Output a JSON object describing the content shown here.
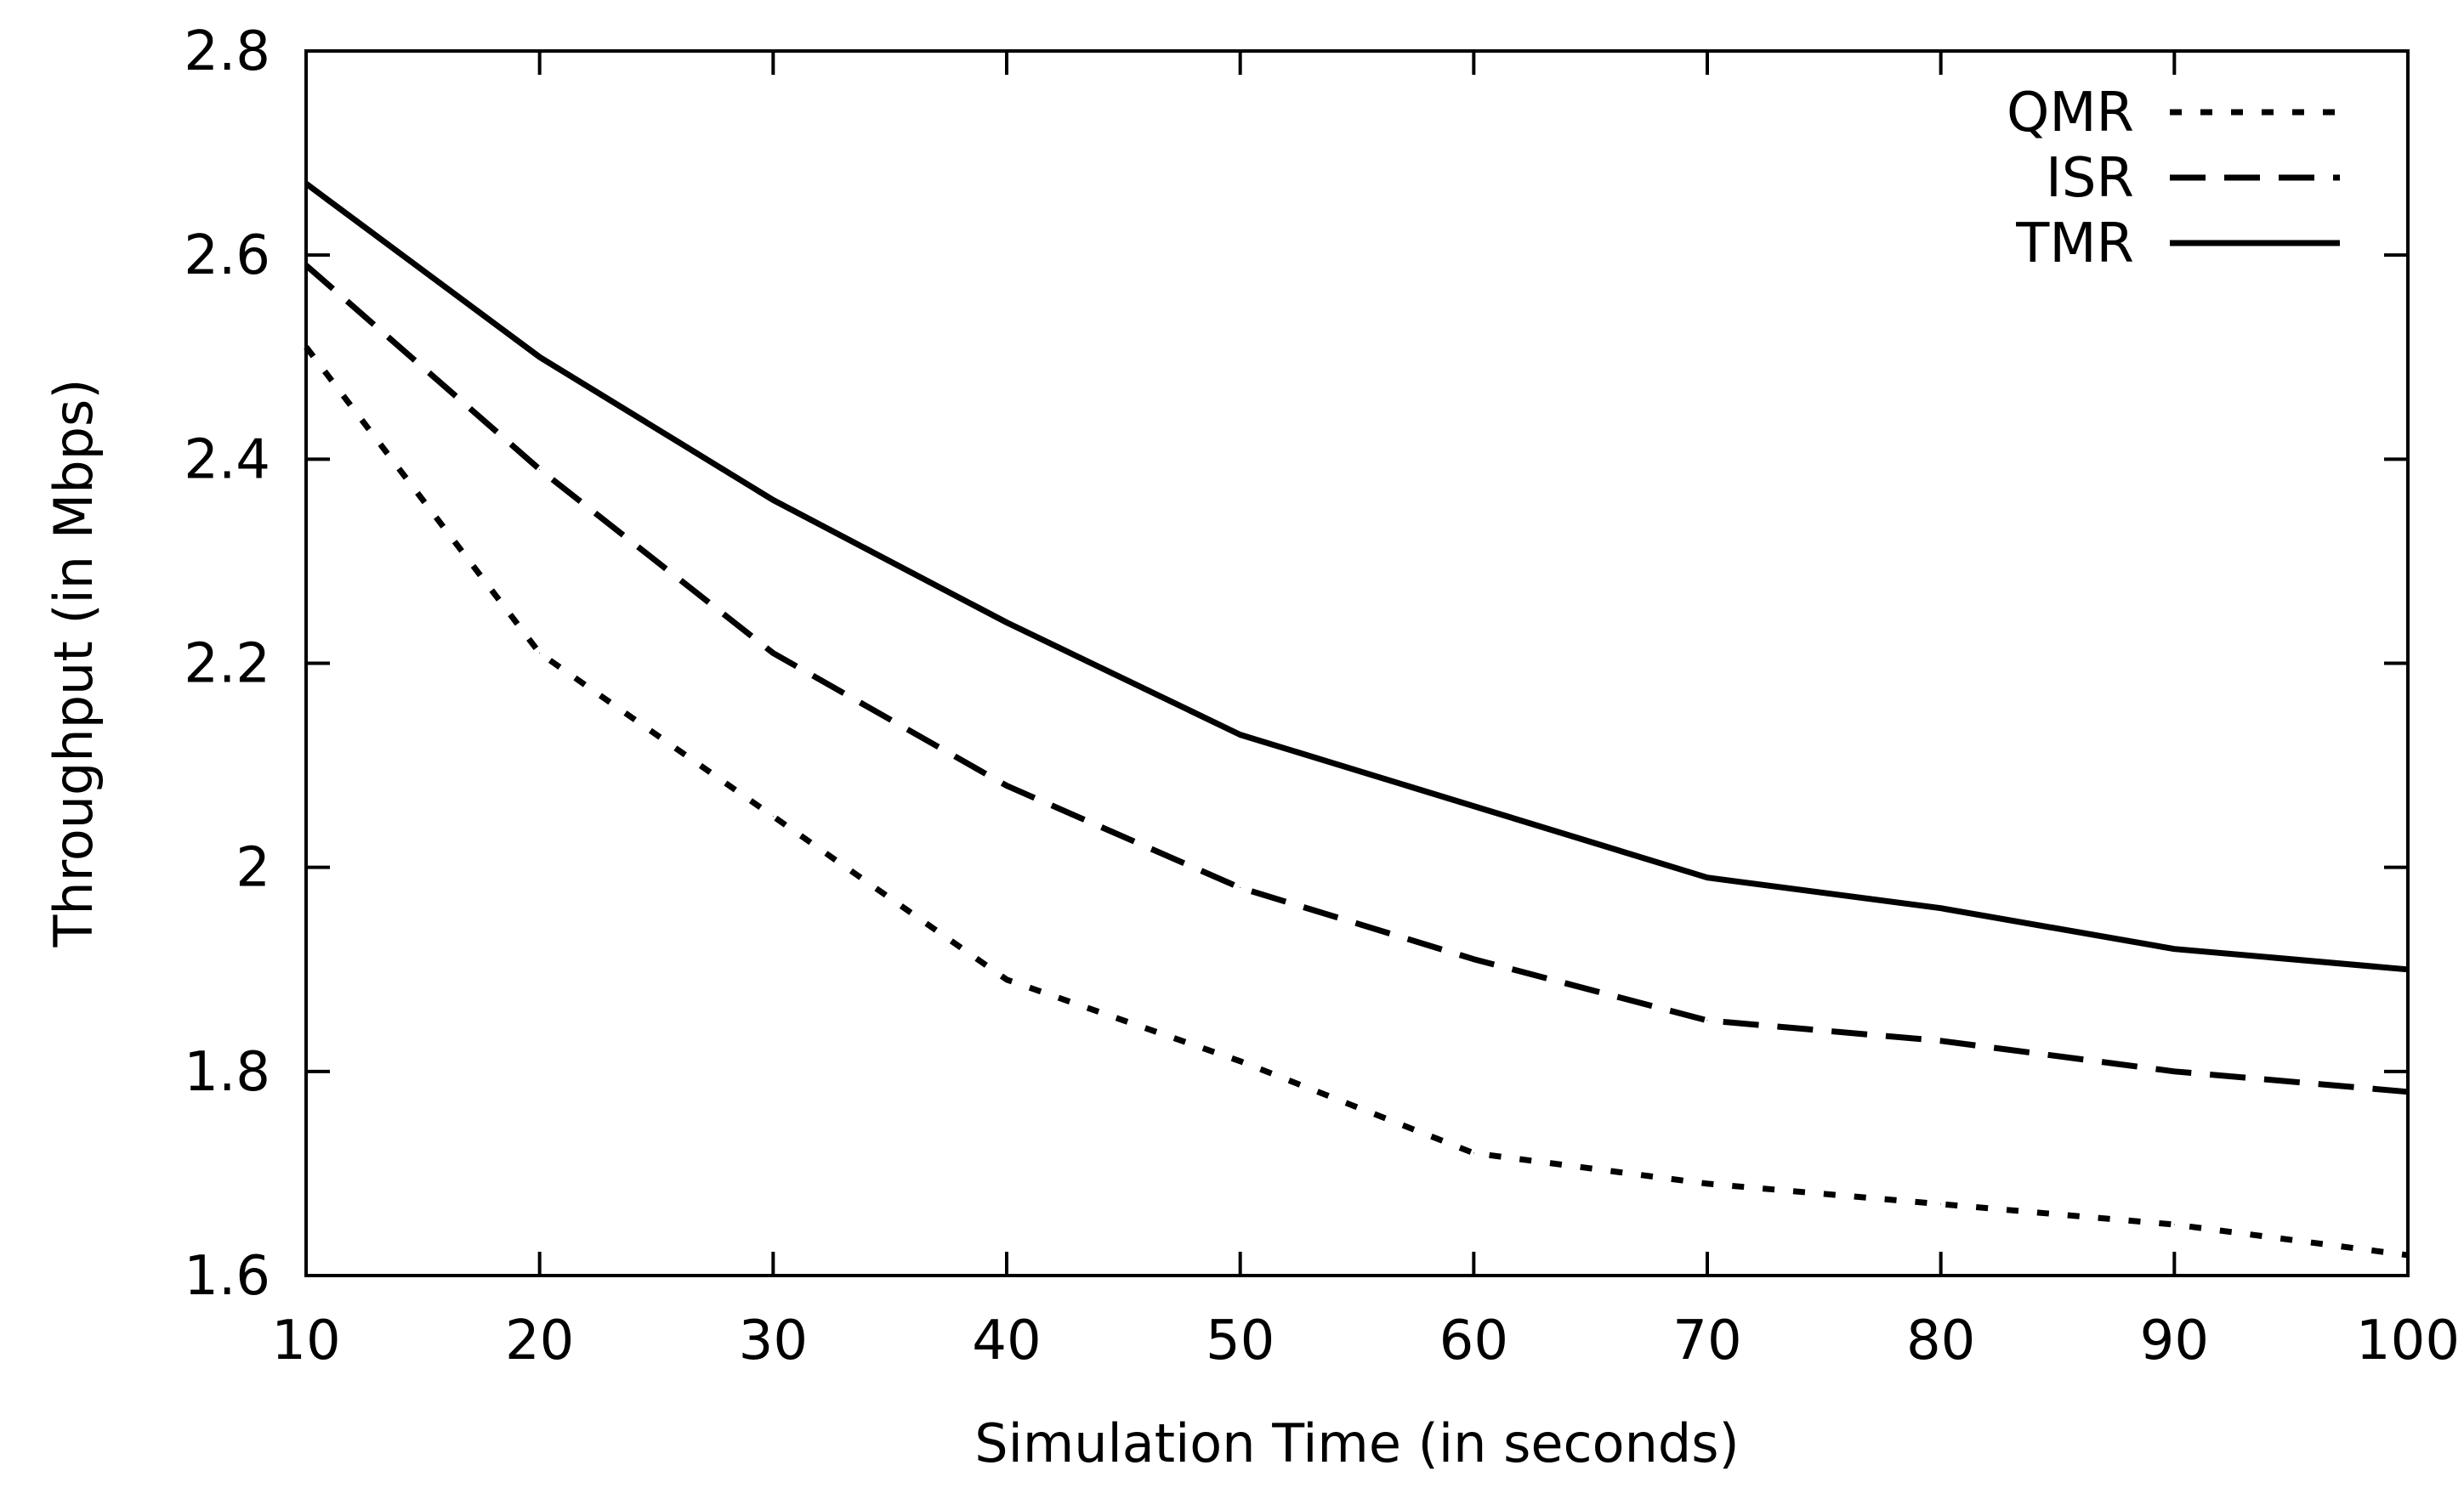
{
  "chart_data": {
    "type": "line",
    "title": "",
    "xlabel": "Simulation Time (in seconds)",
    "ylabel": "Throughput (in Mbps)",
    "xlim": [
      10,
      100
    ],
    "ylim": [
      1.6,
      2.8
    ],
    "xticks": [
      10,
      20,
      30,
      40,
      50,
      60,
      70,
      80,
      90,
      100
    ],
    "xtick_labels": [
      "10",
      "20",
      "30",
      "40",
      "50",
      "60",
      "70",
      "80",
      "90",
      "100"
    ],
    "yticks": [
      1.6,
      1.8,
      2.0,
      2.2,
      2.4,
      2.6,
      2.8
    ],
    "ytick_labels": [
      "1.6",
      "1.8",
      "2",
      "2.2",
      "2.4",
      "2.6",
      "2.8"
    ],
    "grid": false,
    "legend_position": "top-right",
    "x": [
      10,
      20,
      30,
      40,
      50,
      60,
      70,
      80,
      90,
      100
    ],
    "series": [
      {
        "name": "QMR",
        "style": "dotted",
        "color": "#000000",
        "values": [
          2.51,
          2.21,
          2.05,
          1.89,
          1.81,
          1.72,
          1.69,
          1.67,
          1.65,
          1.62
        ]
      },
      {
        "name": "ISR",
        "style": "dashed",
        "color": "#000000",
        "values": [
          2.59,
          2.39,
          2.21,
          2.08,
          1.98,
          1.91,
          1.85,
          1.83,
          1.8,
          1.78
        ]
      },
      {
        "name": "TMR",
        "style": "solid",
        "color": "#000000",
        "values": [
          2.67,
          2.5,
          2.36,
          2.24,
          2.13,
          2.06,
          1.99,
          1.96,
          1.92,
          1.9
        ]
      }
    ]
  }
}
